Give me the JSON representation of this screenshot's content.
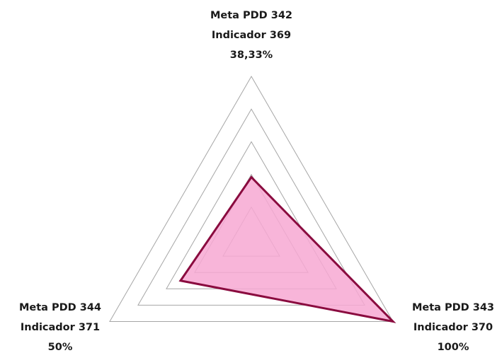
{
  "chart_data": {
    "type": "radar",
    "categories": [
      [
        "Meta PDD 342",
        "Indicador 369"
      ],
      [
        "Meta PDD 343",
        "Indicador 370"
      ],
      [
        "Meta PDD 344",
        "Indicador 371"
      ]
    ],
    "values": [
      38.33,
      100,
      50
    ],
    "value_labels": [
      "38,33%",
      "100%",
      "50%"
    ],
    "color": "#f7a8d2",
    "line_color": "#8a0b3f",
    "rlim": [
      0,
      100
    ],
    "rticks": [
      0,
      20,
      40,
      60,
      80,
      100
    ],
    "grid": true
  }
}
